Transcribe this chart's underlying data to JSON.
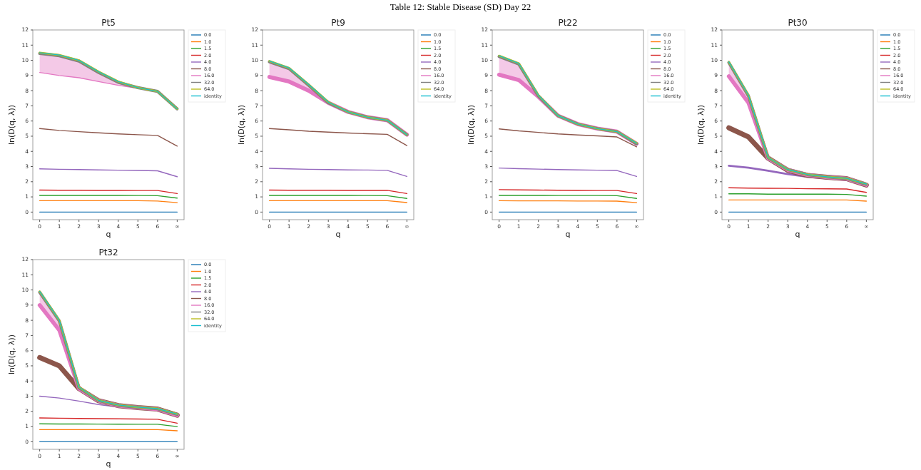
{
  "chart_data": [
    {
      "type": "line",
      "title": "Pt5",
      "xlabel": "q",
      "ylabel": "ln(D(q, λ))",
      "annotations": [
        "Table 12: Stable Disease (SD) Day 22"
      ],
      "categories": [
        "0",
        "1",
        "2",
        "3",
        "4",
        "5",
        "6",
        "∞"
      ],
      "ylim": [
        -0.5,
        12
      ],
      "yticks": [
        0,
        1,
        2,
        3,
        4,
        5,
        6,
        7,
        8,
        9,
        10,
        11,
        12
      ],
      "grid": false,
      "legend": "top right",
      "series": [
        {
          "name": "0.0",
          "color": "#1f77b4",
          "values": [
            0,
            0,
            0,
            0,
            0,
            0,
            0,
            0
          ]
        },
        {
          "name": "1.0",
          "color": "#ff7f0e",
          "values": [
            0.75,
            0.75,
            0.75,
            0.75,
            0.75,
            0.75,
            0.73,
            0.62
          ]
        },
        {
          "name": "1.5",
          "color": "#2ca02c",
          "values": [
            1.1,
            1.1,
            1.1,
            1.1,
            1.1,
            1.09,
            1.08,
            0.92
          ]
        },
        {
          "name": "2.0",
          "color": "#d62728",
          "values": [
            1.45,
            1.44,
            1.44,
            1.43,
            1.43,
            1.42,
            1.42,
            1.22
          ]
        },
        {
          "name": "4.0",
          "color": "#9467bd",
          "values": [
            2.85,
            2.82,
            2.8,
            2.78,
            2.76,
            2.74,
            2.72,
            2.33
          ]
        },
        {
          "name": "8.0",
          "color": "#8c564b",
          "values": [
            5.5,
            5.38,
            5.3,
            5.22,
            5.15,
            5.1,
            5.05,
            4.35
          ]
        },
        {
          "name": "16.0",
          "color": "#e377c2",
          "values": [
            9.2,
            9.0,
            8.85,
            8.6,
            8.35,
            8.15,
            7.95,
            6.8
          ],
          "lower": [
            9.2,
            9.0,
            8.85,
            8.6,
            8.35,
            8.15,
            7.95,
            6.8
          ],
          "upper": [
            10.5,
            10.35,
            10.0,
            9.25,
            8.6,
            8.2,
            7.95,
            6.8
          ]
        },
        {
          "name": "32.0",
          "color": "#7f7f7f",
          "values": [
            10.45,
            10.3,
            9.95,
            9.2,
            8.55,
            8.2,
            7.95,
            6.8
          ]
        },
        {
          "name": "64.0",
          "color": "#bcbd22",
          "values": [
            10.5,
            10.35,
            10.0,
            9.25,
            8.6,
            8.2,
            7.95,
            6.8
          ]
        },
        {
          "name": "identity",
          "color": "#17becf",
          "values": [
            10.5,
            10.35,
            10.0,
            9.25,
            8.6,
            8.2,
            7.95,
            6.8
          ]
        }
      ]
    },
    {
      "type": "line",
      "title": "Pt9",
      "xlabel": "q",
      "ylabel": "ln(D(q, λ))",
      "categories": [
        "0",
        "1",
        "2",
        "3",
        "4",
        "5",
        "6",
        "∞"
      ],
      "ylim": [
        -0.5,
        12
      ],
      "yticks": [
        0,
        1,
        2,
        3,
        4,
        5,
        6,
        7,
        8,
        9,
        10,
        11,
        12
      ],
      "grid": false,
      "legend": "top right",
      "series": [
        {
          "name": "0.0",
          "color": "#1f77b4",
          "values": [
            0,
            0,
            0,
            0,
            0,
            0,
            0,
            0
          ]
        },
        {
          "name": "1.0",
          "color": "#ff7f0e",
          "values": [
            0.75,
            0.75,
            0.75,
            0.75,
            0.75,
            0.75,
            0.75,
            0.63
          ]
        },
        {
          "name": "1.5",
          "color": "#2ca02c",
          "values": [
            1.1,
            1.1,
            1.1,
            1.1,
            1.1,
            1.09,
            1.08,
            0.9
          ]
        },
        {
          "name": "2.0",
          "color": "#d62728",
          "values": [
            1.45,
            1.44,
            1.44,
            1.44,
            1.43,
            1.43,
            1.43,
            1.22
          ]
        },
        {
          "name": "4.0",
          "color": "#9467bd",
          "values": [
            2.88,
            2.85,
            2.82,
            2.8,
            2.78,
            2.77,
            2.75,
            2.35
          ]
        },
        {
          "name": "8.0",
          "color": "#8c564b",
          "values": [
            5.5,
            5.42,
            5.33,
            5.27,
            5.21,
            5.16,
            5.12,
            4.38
          ]
        },
        {
          "name": "16.0",
          "color": "#e377c2",
          "values": [
            8.9,
            8.6,
            8.0,
            7.2,
            6.6,
            6.25,
            6.05,
            5.1
          ],
          "lower": [
            8.9,
            8.6,
            8.0,
            7.2,
            6.6,
            6.25,
            6.05,
            5.1
          ],
          "upper": [
            9.95,
            9.5,
            8.4,
            7.25,
            6.6,
            6.25,
            6.05,
            5.1
          ]
        },
        {
          "name": "32.0",
          "color": "#7f7f7f",
          "values": [
            9.9,
            9.45,
            8.35,
            7.2,
            6.6,
            6.25,
            6.05,
            5.1
          ]
        },
        {
          "name": "64.0",
          "color": "#bcbd22",
          "values": [
            9.95,
            9.5,
            8.4,
            7.25,
            6.6,
            6.25,
            6.05,
            5.1
          ]
        },
        {
          "name": "identity",
          "color": "#17becf",
          "values": [
            9.95,
            9.5,
            8.4,
            7.25,
            6.6,
            6.25,
            6.05,
            5.1
          ]
        }
      ]
    },
    {
      "type": "line",
      "title": "Pt22",
      "xlabel": "q",
      "ylabel": "ln(D(q, λ))",
      "categories": [
        "0",
        "1",
        "2",
        "3",
        "4",
        "5",
        "6",
        "∞"
      ],
      "ylim": [
        -0.5,
        12
      ],
      "yticks": [
        0,
        1,
        2,
        3,
        4,
        5,
        6,
        7,
        8,
        9,
        10,
        11,
        12
      ],
      "grid": false,
      "legend": "top right",
      "series": [
        {
          "name": "0.0",
          "color": "#1f77b4",
          "values": [
            0,
            0,
            0,
            0,
            0,
            0,
            0,
            0
          ]
        },
        {
          "name": "1.0",
          "color": "#ff7f0e",
          "values": [
            0.75,
            0.74,
            0.74,
            0.74,
            0.73,
            0.73,
            0.72,
            0.62
          ]
        },
        {
          "name": "1.5",
          "color": "#2ca02c",
          "values": [
            1.1,
            1.1,
            1.1,
            1.09,
            1.09,
            1.09,
            1.08,
            0.9
          ]
        },
        {
          "name": "2.0",
          "color": "#d62728",
          "values": [
            1.48,
            1.46,
            1.45,
            1.44,
            1.43,
            1.42,
            1.42,
            1.22
          ]
        },
        {
          "name": "4.0",
          "color": "#9467bd",
          "values": [
            2.9,
            2.86,
            2.83,
            2.8,
            2.78,
            2.76,
            2.74,
            2.35
          ]
        },
        {
          "name": "8.0",
          "color": "#8c564b",
          "values": [
            5.48,
            5.35,
            5.25,
            5.15,
            5.08,
            5.02,
            4.95,
            4.3
          ]
        },
        {
          "name": "16.0",
          "color": "#e377c2",
          "values": [
            9.05,
            8.7,
            7.6,
            6.35,
            5.8,
            5.5,
            5.3,
            4.5
          ],
          "lower": [
            9.05,
            8.7,
            7.6,
            6.35,
            5.8,
            5.5,
            5.3,
            4.5
          ],
          "upper": [
            10.3,
            9.8,
            7.7,
            6.35,
            5.8,
            5.5,
            5.3,
            4.55
          ]
        },
        {
          "name": "32.0",
          "color": "#7f7f7f",
          "values": [
            10.25,
            9.75,
            7.65,
            6.35,
            5.8,
            5.5,
            5.3,
            4.5
          ]
        },
        {
          "name": "64.0",
          "color": "#bcbd22",
          "values": [
            10.3,
            9.8,
            7.7,
            6.35,
            5.8,
            5.5,
            5.3,
            4.55
          ]
        },
        {
          "name": "identity",
          "color": "#17becf",
          "values": [
            10.3,
            9.8,
            7.7,
            6.35,
            5.8,
            5.5,
            5.3,
            4.55
          ]
        }
      ]
    },
    {
      "type": "line",
      "title": "Pt30",
      "xlabel": "q",
      "ylabel": "ln(D(q, λ))",
      "categories": [
        "0",
        "1",
        "2",
        "3",
        "4",
        "5",
        "6",
        "∞"
      ],
      "ylim": [
        -0.5,
        12
      ],
      "yticks": [
        0,
        1,
        2,
        3,
        4,
        5,
        6,
        7,
        8,
        9,
        10,
        11,
        12
      ],
      "grid": false,
      "legend": "top right",
      "series": [
        {
          "name": "0.0",
          "color": "#1f77b4",
          "values": [
            0,
            0,
            0,
            0,
            0,
            0,
            0,
            0
          ]
        },
        {
          "name": "1.0",
          "color": "#ff7f0e",
          "values": [
            0.8,
            0.8,
            0.8,
            0.8,
            0.8,
            0.8,
            0.8,
            0.72
          ]
        },
        {
          "name": "1.5",
          "color": "#2ca02c",
          "values": [
            1.2,
            1.2,
            1.18,
            1.18,
            1.18,
            1.18,
            1.16,
            1.05
          ]
        },
        {
          "name": "2.0",
          "color": "#d62728",
          "values": [
            1.6,
            1.58,
            1.57,
            1.56,
            1.54,
            1.53,
            1.52,
            1.3
          ]
        },
        {
          "name": "4.0",
          "color": "#9467bd",
          "values": [
            3.05,
            2.92,
            2.72,
            2.5,
            2.33,
            2.22,
            2.12,
            1.72
          ]
        },
        {
          "name": "8.0",
          "color": "#8c564b",
          "values": [
            5.55,
            4.95,
            3.55,
            2.75,
            2.42,
            2.3,
            2.2,
            1.78
          ]
        },
        {
          "name": "16.0",
          "color": "#e377c2",
          "values": [
            8.95,
            7.2,
            3.55,
            2.78,
            2.45,
            2.3,
            2.2,
            1.8
          ],
          "lower": [
            8.95,
            7.2,
            3.55,
            2.78,
            2.45,
            2.3,
            2.2,
            1.8
          ],
          "upper": [
            9.9,
            7.7,
            3.6,
            2.8,
            2.48,
            2.32,
            2.22,
            1.85
          ]
        },
        {
          "name": "32.0",
          "color": "#7f7f7f",
          "values": [
            9.85,
            7.65,
            3.58,
            2.8,
            2.47,
            2.31,
            2.21,
            1.83
          ]
        },
        {
          "name": "64.0",
          "color": "#bcbd22",
          "values": [
            9.9,
            7.7,
            3.6,
            2.8,
            2.48,
            2.32,
            2.22,
            1.85
          ]
        },
        {
          "name": "identity",
          "color": "#17becf",
          "values": [
            9.9,
            7.7,
            3.6,
            2.8,
            2.48,
            2.32,
            2.22,
            1.85
          ]
        }
      ]
    },
    {
      "type": "line",
      "title": "Pt32",
      "xlabel": "q",
      "ylabel": "ln(D(q, λ))",
      "categories": [
        "0",
        "1",
        "2",
        "3",
        "4",
        "5",
        "6",
        "∞"
      ],
      "ylim": [
        -0.5,
        12
      ],
      "yticks": [
        0,
        1,
        2,
        3,
        4,
        5,
        6,
        7,
        8,
        9,
        10,
        11,
        12
      ],
      "grid": false,
      "legend": "top right",
      "series": [
        {
          "name": "0.0",
          "color": "#1f77b4",
          "values": [
            0,
            0,
            0,
            0,
            0,
            0,
            0,
            0
          ]
        },
        {
          "name": "1.0",
          "color": "#ff7f0e",
          "values": [
            0.8,
            0.8,
            0.8,
            0.8,
            0.8,
            0.8,
            0.8,
            0.72
          ]
        },
        {
          "name": "1.5",
          "color": "#2ca02c",
          "values": [
            1.18,
            1.17,
            1.17,
            1.16,
            1.16,
            1.15,
            1.15,
            1.0
          ]
        },
        {
          "name": "2.0",
          "color": "#d62728",
          "values": [
            1.57,
            1.55,
            1.53,
            1.52,
            1.51,
            1.5,
            1.48,
            1.22
          ]
        },
        {
          "name": "4.0",
          "color": "#9467bd",
          "values": [
            3.0,
            2.88,
            2.68,
            2.45,
            2.28,
            2.18,
            2.08,
            1.68
          ]
        },
        {
          "name": "8.0",
          "color": "#8c564b",
          "values": [
            5.55,
            5.0,
            3.5,
            2.7,
            2.38,
            2.25,
            2.15,
            1.75
          ]
        },
        {
          "name": "16.0",
          "color": "#e377c2",
          "values": [
            9.0,
            7.35,
            3.5,
            2.7,
            2.38,
            2.25,
            2.15,
            1.75
          ],
          "lower": [
            9.0,
            7.35,
            3.5,
            2.7,
            2.38,
            2.25,
            2.15,
            1.75
          ],
          "upper": [
            9.9,
            8.0,
            3.6,
            2.72,
            2.42,
            2.28,
            2.18,
            1.82
          ]
        },
        {
          "name": "32.0",
          "color": "#7f7f7f",
          "values": [
            9.85,
            7.95,
            3.55,
            2.71,
            2.4,
            2.27,
            2.17,
            1.8
          ]
        },
        {
          "name": "64.0",
          "color": "#bcbd22",
          "values": [
            9.9,
            8.0,
            3.6,
            2.72,
            2.42,
            2.28,
            2.18,
            1.82
          ]
        },
        {
          "name": "identity",
          "color": "#17becf",
          "values": [
            9.9,
            8.0,
            3.6,
            2.72,
            2.42,
            2.28,
            2.18,
            1.82
          ]
        }
      ]
    }
  ]
}
